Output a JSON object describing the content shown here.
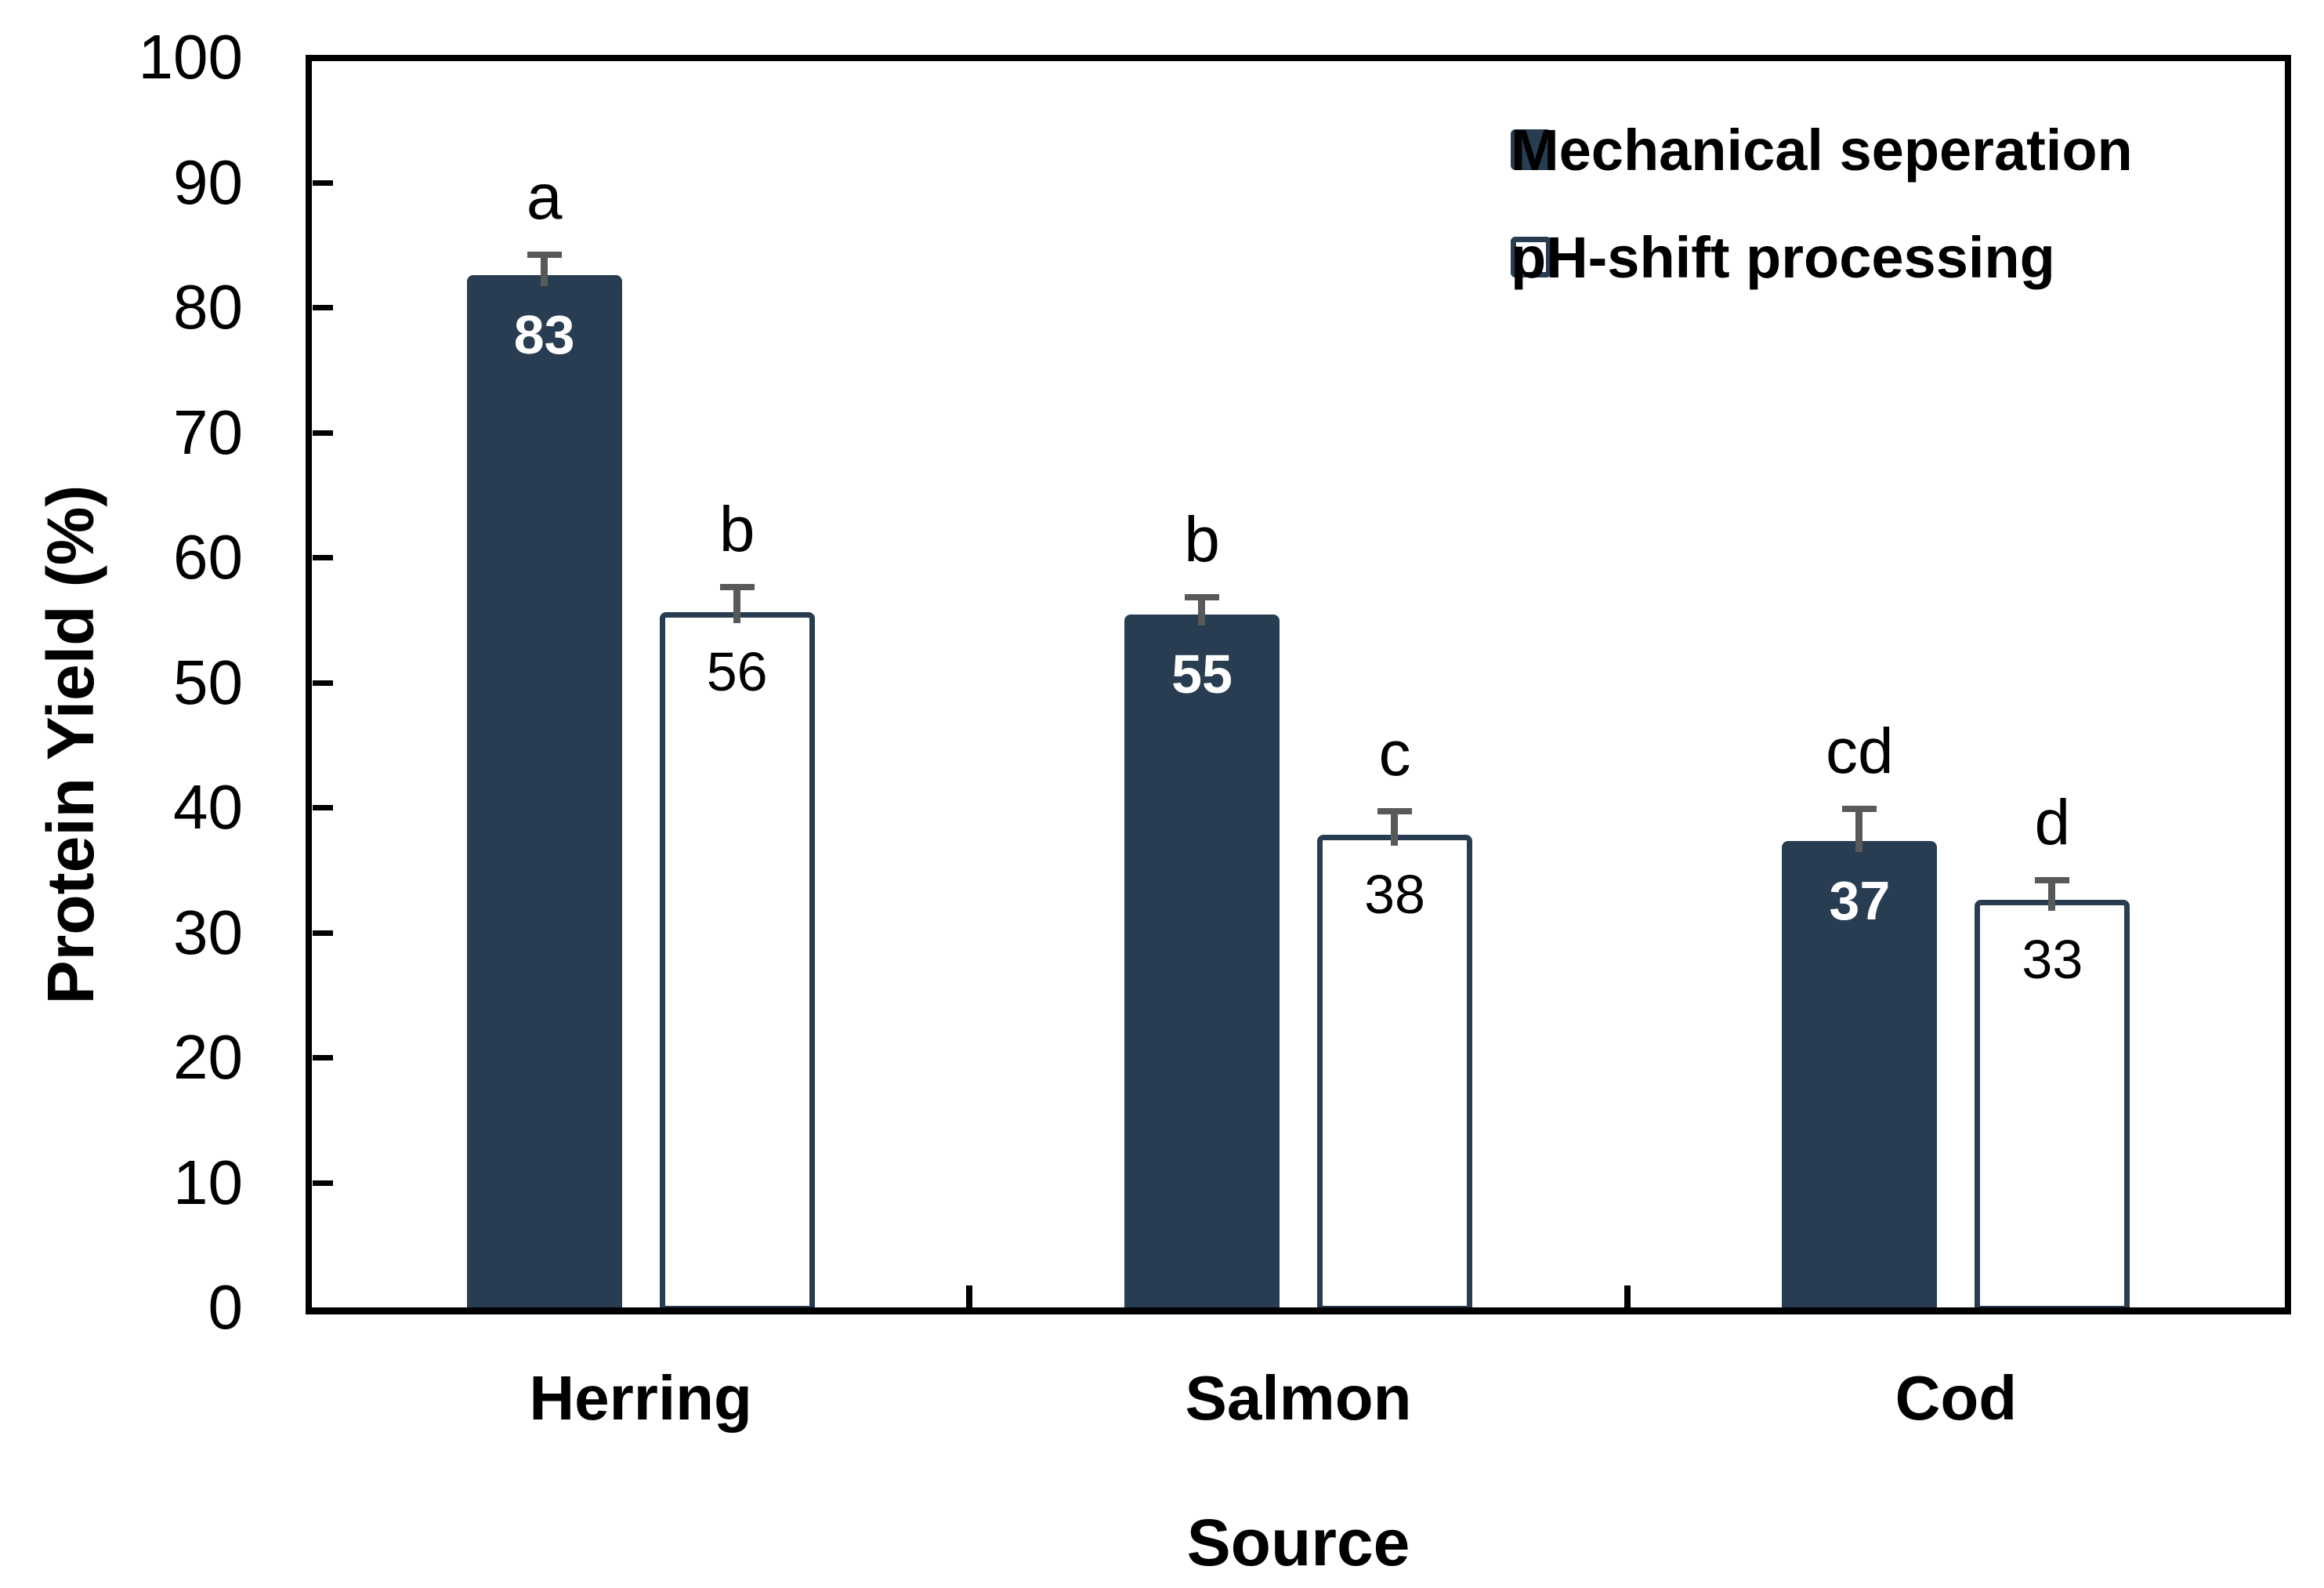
{
  "chart_data": {
    "type": "bar",
    "title": "",
    "xlabel": "Source",
    "ylabel": "Protein Yield (%)",
    "ylim": [
      0,
      100
    ],
    "ytick_step": 10,
    "ytick_labels": [
      "0",
      "10",
      "20",
      "30",
      "40",
      "50",
      "60",
      "70",
      "80",
      "90",
      "100"
    ],
    "categories": [
      "Herring",
      "Salmon",
      "Cod"
    ],
    "series": [
      {
        "name": "Mechanical seperation",
        "style": "filled",
        "values": [
          83,
          55,
          37
        ],
        "bar_heights": [
          82.6,
          55.4,
          37.3
        ],
        "errors_plus": [
          1.6,
          1.4,
          2.6
        ],
        "sig_letters": [
          "a",
          "b",
          "cd"
        ]
      },
      {
        "name": "pH-shift processing",
        "style": "open",
        "values": [
          56,
          38,
          33
        ],
        "bar_heights": [
          55.6,
          37.8,
          32.6
        ],
        "errors_plus": [
          2.0,
          1.9,
          1.6
        ],
        "sig_letters": [
          "b",
          "c",
          "d"
        ]
      }
    ],
    "legend_position": "top-right-inside",
    "grid": false,
    "tick_style": "inside"
  },
  "colors": {
    "bar_fill": "#283D52",
    "bar_border": "#283D52",
    "open_bar_fill": "#FFFFFF",
    "error_bar": "#595959",
    "axis": "#000000",
    "text": "#000000",
    "value_label_on_dark": "#FFFFFF",
    "value_label_on_open": "#000000"
  }
}
